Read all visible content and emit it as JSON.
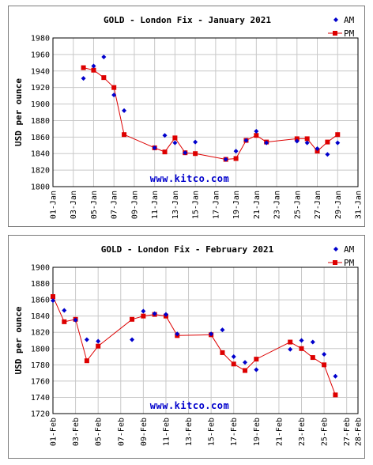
{
  "colors": {
    "am": "#0000cc",
    "pm": "#dd0000",
    "grid": "#c8c8c8"
  },
  "chart_data": [
    {
      "type": "scatter",
      "title": "GOLD - London Fix - January 2021",
      "ylabel": "USD per ounce",
      "watermark": "www.kitco.com",
      "ylim": [
        1800,
        1980
      ],
      "yticks": [
        1800,
        1820,
        1840,
        1860,
        1880,
        1900,
        1920,
        1940,
        1960,
        1980
      ],
      "xlim": [
        1,
        31
      ],
      "xtick_days": [
        1,
        3,
        5,
        7,
        9,
        11,
        13,
        15,
        17,
        19,
        21,
        23,
        25,
        27,
        29,
        31
      ],
      "xtick_labels": [
        "01-Jan",
        "03-Jan",
        "05-Jan",
        "07-Jan",
        "09-Jan",
        "11-Jan",
        "13-Jan",
        "15-Jan",
        "17-Jan",
        "19-Jan",
        "21-Jan",
        "23-Jan",
        "25-Jan",
        "27-Jan",
        "29-Jan",
        "31-Jan"
      ],
      "grid": true,
      "legend_position": "top-right",
      "series": [
        {
          "name": "AM",
          "marker": "diamond",
          "x": [
            4,
            5,
            6,
            7,
            8,
            11,
            12,
            13,
            14,
            15,
            18,
            19,
            20,
            21,
            22,
            25,
            26,
            27,
            28,
            29
          ],
          "y": [
            1931,
            1946,
            1957,
            1911,
            1892,
            1847,
            1862,
            1853,
            1841,
            1854,
            1833,
            1843,
            1856,
            1867,
            1853,
            1855,
            1853,
            1846,
            1839,
            1853
          ]
        },
        {
          "name": "PM",
          "marker": "square",
          "line": true,
          "x": [
            4,
            5,
            6,
            7,
            8,
            11,
            12,
            13,
            14,
            15,
            18,
            19,
            20,
            21,
            22,
            25,
            26,
            27,
            28,
            29
          ],
          "y": [
            1944,
            1941,
            1932,
            1920,
            1863,
            1847,
            1842,
            1859,
            1841,
            1840,
            1833,
            1834,
            1856,
            1862,
            1854,
            1858,
            1858,
            1843,
            1854,
            1863
          ]
        }
      ]
    },
    {
      "type": "scatter",
      "title": "GOLD - London Fix - February 2021",
      "ylabel": "USD per ounce",
      "watermark": "www.kitco.com",
      "ylim": [
        1720,
        1900
      ],
      "yticks": [
        1720,
        1740,
        1760,
        1780,
        1800,
        1820,
        1840,
        1860,
        1880,
        1900
      ],
      "xlim": [
        1,
        28
      ],
      "xtick_days": [
        1,
        3,
        5,
        7,
        9,
        11,
        13,
        15,
        17,
        19,
        21,
        23,
        25,
        27,
        28
      ],
      "xtick_labels": [
        "01-Feb",
        "03-Feb",
        "05-Feb",
        "07-Feb",
        "09-Feb",
        "11-Feb",
        "13-Feb",
        "15-Feb",
        "17-Feb",
        "19-Feb",
        "21-Feb",
        "23-Feb",
        "25-Feb",
        "27-Feb",
        "28-Feb"
      ],
      "grid": true,
      "legend_position": "top-right",
      "series": [
        {
          "name": "AM",
          "marker": "diamond",
          "x": [
            1,
            2,
            3,
            4,
            5,
            8,
            9,
            10,
            11,
            12,
            15,
            16,
            17,
            18,
            19,
            22,
            23,
            24,
            25,
            26
          ],
          "y": [
            1859,
            1847,
            1835,
            1811,
            1809,
            1811,
            1846,
            1843,
            1842,
            1818,
            1818,
            1823,
            1790,
            1783,
            1774,
            1799,
            1810,
            1808,
            1793,
            1766
          ]
        },
        {
          "name": "PM",
          "marker": "square",
          "line": true,
          "x": [
            1,
            2,
            3,
            4,
            5,
            8,
            9,
            10,
            11,
            12,
            15,
            16,
            17,
            18,
            19,
            22,
            23,
            24,
            25,
            26
          ],
          "y": [
            1864,
            1833,
            1836,
            1785,
            1803,
            1836,
            1840,
            1842,
            1840,
            1816,
            1817,
            1795,
            1781,
            1773,
            1787,
            1808,
            1800,
            1789,
            1780,
            1743
          ]
        }
      ]
    }
  ]
}
